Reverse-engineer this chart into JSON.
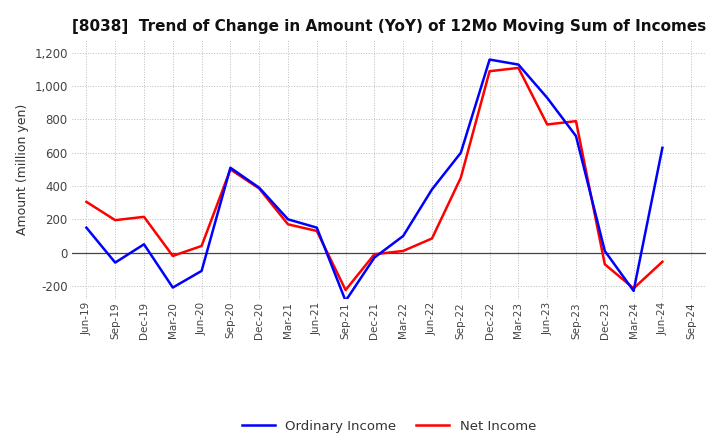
{
  "title": "[8038]  Trend of Change in Amount (YoY) of 12Mo Moving Sum of Incomes",
  "ylabel": "Amount (million yen)",
  "x_labels": [
    "Jun-19",
    "Sep-19",
    "Dec-19",
    "Mar-20",
    "Jun-20",
    "Sep-20",
    "Dec-20",
    "Mar-21",
    "Jun-21",
    "Sep-21",
    "Dec-21",
    "Mar-22",
    "Jun-22",
    "Sep-22",
    "Dec-22",
    "Mar-23",
    "Jun-23",
    "Sep-23",
    "Dec-23",
    "Mar-24",
    "Jun-24",
    "Sep-24"
  ],
  "ordinary_income": [
    150,
    -60,
    50,
    -210,
    -110,
    510,
    390,
    200,
    150,
    -290,
    -30,
    100,
    380,
    600,
    1160,
    1130,
    930,
    700,
    10,
    -230,
    630,
    null
  ],
  "net_income": [
    305,
    195,
    215,
    -20,
    40,
    500,
    385,
    170,
    130,
    -225,
    -10,
    10,
    85,
    450,
    1090,
    1110,
    770,
    790,
    -70,
    -215,
    -55,
    null
  ],
  "ordinary_color": "#0000ff",
  "net_color": "#ff0000",
  "ylim": [
    -280,
    1280
  ],
  "yticks": [
    -200,
    0,
    200,
    400,
    600,
    800,
    1000,
    1200
  ],
  "background_color": "#ffffff",
  "grid_color": "#bbbbbb",
  "title_fontsize": 11,
  "figsize": [
    7.2,
    4.4
  ],
  "dpi": 100
}
